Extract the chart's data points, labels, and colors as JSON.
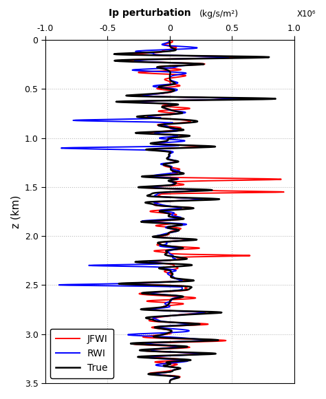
{
  "title": "Ip perturbation",
  "title_units": "(kg/s/m²)",
  "title_scale": "X10⁶",
  "ylabel": "z (km)",
  "xlim": [
    -1.0,
    1.0
  ],
  "ylim": [
    3.5,
    0.0
  ],
  "xticks": [
    -1.0,
    -0.5,
    0.0,
    0.5,
    1.0
  ],
  "yticks": [
    0.0,
    0.5,
    1.0,
    1.5,
    2.0,
    2.5,
    3.0,
    3.5
  ],
  "colors": {
    "true": "#000000",
    "rwi": "#0000ff",
    "jfwi": "#ff0000"
  },
  "legend": [
    "True",
    "RWI",
    "JFWI"
  ],
  "linewidth_true": 1.8,
  "linewidth_rwi": 1.4,
  "linewidth_jfwi": 1.4,
  "grid_color": "#bbbbbb",
  "grid_style": "dotted",
  "background": "#ffffff"
}
